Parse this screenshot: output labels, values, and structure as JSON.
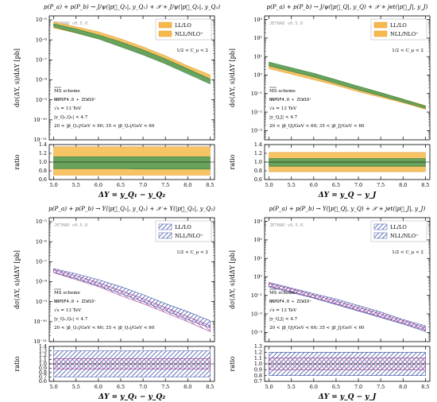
{
  "colors": {
    "ll_jpsi": "#f5b84a",
    "nll_jpsi": "#5a9f5a",
    "ll_ups": "#3a52a8",
    "nll_ups": "#a03a90",
    "frame": "#000000"
  },
  "chart_data": [
    {
      "type": "area",
      "panel": "top-left",
      "title": "p(P_a) + p(P_b) → J/ψ(|p⃗_Q₁|, y_Q₁) + 𝒳 + J/ψ(|p⃗_Q₂|, y_Q₂)",
      "watermark": "JETHAD v0.5.0",
      "ylabel": "dσ(ΔY, s)/dΔY [pb]",
      "xlabel": "ΔY = y_Q₁ − y_Q₂",
      "ratio_label": "ratio",
      "log_y": true,
      "ylim_exp": [
        -11,
        -4.8
      ],
      "y_ticks": [
        "10⁻⁵",
        "10⁻⁶",
        "10⁻⁷",
        "10⁻⁸",
        "10⁻⁹",
        "10⁻¹⁰",
        "10⁻¹¹"
      ],
      "y_tick_values": [
        -5,
        -6,
        -7,
        -8,
        -9,
        -10,
        -11
      ],
      "xlim": [
        4.9,
        8.6
      ],
      "x_ticks": [
        "5.0",
        "5.5",
        "6.0",
        "6.5",
        "7.0",
        "7.5",
        "8.0",
        "8.5"
      ],
      "x_tick_values": [
        5.0,
        5.5,
        6.0,
        6.5,
        7.0,
        7.5,
        8.0,
        8.5
      ],
      "ratio_ylim": [
        0.6,
        1.4
      ],
      "ratio_ticks": [
        "1.4",
        "1.2",
        "1.0",
        "0.8",
        "0.6"
      ],
      "ratio_tick_values": [
        1.4,
        1.2,
        1.0,
        0.8,
        0.6
      ],
      "legend": [
        {
          "label": "LL/LO",
          "style": "fill-ll"
        },
        {
          "label": "NLL/NLO⁺",
          "style": "fill-nll"
        }
      ],
      "annotation_cp": "1/2 < C_μ < 2",
      "annotations": [
        "MS scheme",
        "NNPDF4.0 + ZCW19⁺",
        "√s = 13 TeV",
        "|y_Q₁,Q₂| < 4.7",
        "20 < |p⃗_Q₁|/GeV < 60; 35 < |p⃗_Q₂|/GeV < 60"
      ],
      "x": [
        5.0,
        5.5,
        6.0,
        6.5,
        7.0,
        7.5,
        8.0,
        8.5
      ],
      "series": [
        {
          "name": "LL/LO",
          "style": "ll",
          "low": [
            -5.4,
            -5.65,
            -5.95,
            -6.3,
            -6.7,
            -7.15,
            -7.6,
            -8.05
          ],
          "high": [
            -5.1,
            -5.35,
            -5.6,
            -5.95,
            -6.35,
            -6.8,
            -7.3,
            -7.75
          ],
          "ratio_low": [
            0.7,
            0.7,
            0.7,
            0.7,
            0.7,
            0.7,
            0.7,
            0.7
          ],
          "ratio_high": [
            1.35,
            1.35,
            1.35,
            1.35,
            1.35,
            1.35,
            1.35,
            1.35
          ]
        },
        {
          "name": "NLL/NLO⁺",
          "style": "nll",
          "low": [
            -5.35,
            -5.65,
            -5.95,
            -6.35,
            -6.75,
            -7.2,
            -7.7,
            -8.2
          ],
          "high": [
            -5.2,
            -5.45,
            -5.75,
            -6.1,
            -6.5,
            -6.95,
            -7.45,
            -7.95
          ],
          "ratio_low": [
            0.85,
            0.85,
            0.85,
            0.85,
            0.84,
            0.84,
            0.84,
            0.84
          ],
          "ratio_high": [
            1.12,
            1.12,
            1.12,
            1.12,
            1.12,
            1.12,
            1.12,
            1.12
          ]
        }
      ]
    },
    {
      "type": "area",
      "panel": "top-right",
      "title": "p(P_a) + p(P_b) → J/ψ(|p⃗_Q|, y_Q) + 𝒳 + jet(|p⃗_J|, y_J)",
      "watermark": "JETHAD v0.5.0",
      "ylabel": "dσ(ΔY, s)/dΔY [pb]",
      "xlabel": "ΔY = y_Q − y_J",
      "ratio_label": "ratio",
      "log_y": true,
      "ylim_exp": [
        -3.5,
        3.2
      ],
      "y_ticks": [
        "10³",
        "10²",
        "10¹",
        "10⁰",
        "10⁻¹",
        "10⁻²",
        "10⁻³"
      ],
      "y_tick_values": [
        3,
        2,
        1,
        0,
        -1,
        -2,
        -3
      ],
      "xlim": [
        4.9,
        8.6
      ],
      "x_ticks": [
        "5.0",
        "5.5",
        "6.0",
        "6.5",
        "7.0",
        "7.5",
        "8.0",
        "8.5"
      ],
      "x_tick_values": [
        5.0,
        5.5,
        6.0,
        6.5,
        7.0,
        7.5,
        8.0,
        8.5
      ],
      "ratio_ylim": [
        0.6,
        1.4
      ],
      "ratio_ticks": [
        "1.4",
        "1.2",
        "1.0",
        "0.8",
        "0.6"
      ],
      "ratio_tick_values": [
        1.4,
        1.2,
        1.0,
        0.8,
        0.6
      ],
      "legend": [
        {
          "label": "LL/LO",
          "style": "fill-ll"
        },
        {
          "label": "NLL/NLO⁺",
          "style": "fill-nll"
        }
      ],
      "annotation_cp": "1/2 < C_μ < 2",
      "annotations": [
        "MS scheme",
        "NNPDF4.0 + ZCW19⁺",
        "√s = 13 TeV",
        "|y_Q,J| < 4.7",
        "20 < |p⃗_Q|/GeV < 60; 35 < |p⃗_J|/GeV < 60"
      ],
      "x": [
        5.0,
        5.5,
        6.0,
        6.5,
        7.0,
        7.5,
        8.0,
        8.5
      ],
      "series": [
        {
          "name": "LL/LO",
          "style": "ll",
          "low": [
            0.35,
            0.05,
            -0.25,
            -0.55,
            -0.9,
            -1.2,
            -1.5,
            -1.85
          ],
          "high": [
            0.62,
            0.32,
            0.02,
            -0.3,
            -0.62,
            -0.95,
            -1.3,
            -1.65
          ],
          "ratio_low": [
            0.78,
            0.78,
            0.78,
            0.78,
            0.78,
            0.78,
            0.78,
            0.78
          ],
          "ratio_high": [
            1.22,
            1.22,
            1.22,
            1.22,
            1.22,
            1.22,
            1.22,
            1.22
          ]
        },
        {
          "name": "NLL/NLO⁺",
          "style": "nll",
          "low": [
            0.5,
            0.2,
            -0.1,
            -0.45,
            -0.8,
            -1.12,
            -1.45,
            -1.8
          ],
          "high": [
            0.7,
            0.4,
            0.1,
            -0.25,
            -0.6,
            -0.95,
            -1.3,
            -1.68
          ],
          "ratio_low": [
            0.9,
            0.9,
            0.9,
            0.9,
            0.9,
            0.9,
            0.9,
            0.9
          ],
          "ratio_high": [
            1.08,
            1.08,
            1.08,
            1.08,
            1.08,
            1.08,
            1.08,
            1.08
          ]
        }
      ]
    },
    {
      "type": "area",
      "panel": "bottom-left",
      "title": "p(P_a) + p(P_b) → Υ(|p⃗_Q₁|, y_Q₁) + 𝒳 + Υ(|p⃗_Q₂|, y_Q₂)",
      "watermark": "JETHAD v0.5.0",
      "ylabel": "dσ(ΔY, s)/dΔY [pb]",
      "xlabel": "ΔY = y_Q₁ − y_Q₂",
      "ratio_label": "ratio",
      "log_y": true,
      "ylim_exp": [
        -11,
        -4.8
      ],
      "y_ticks": [
        "10⁻⁵",
        "10⁻⁶",
        "10⁻⁷",
        "10⁻⁸",
        "10⁻⁹",
        "10⁻¹⁰",
        "10⁻¹¹"
      ],
      "y_tick_values": [
        -5,
        -6,
        -7,
        -8,
        -9,
        -10,
        -11
      ],
      "xlim": [
        4.9,
        8.6
      ],
      "x_ticks": [
        "5.0",
        "5.5",
        "6.0",
        "6.5",
        "7.0",
        "7.5",
        "8.0",
        "8.5"
      ],
      "x_tick_values": [
        5.0,
        5.5,
        6.0,
        6.5,
        7.0,
        7.5,
        8.0,
        8.5
      ],
      "ratio_ylim": [
        0.6,
        1.4
      ],
      "ratio_ticks": [
        "1.4",
        "1.3",
        "1.2",
        "1.1",
        "1.0",
        "0.9",
        "0.8",
        "0.7",
        "0.6"
      ],
      "ratio_tick_values": [
        1.4,
        1.3,
        1.2,
        1.1,
        1.0,
        0.9,
        0.8,
        0.7,
        0.6
      ],
      "legend": [
        {
          "label": "LL/LO",
          "style": "hatch-ll"
        },
        {
          "label": "NLL/NLO⁺",
          "style": "hatch-nll"
        }
      ],
      "annotation_cp": "1/2 < C_μ < 2",
      "annotations": [
        "MS scheme",
        "NNPDF4.0 + ZCW19⁺",
        "√s = 13 TeV",
        "|y_Q₁,Q₂| < 4.7",
        "20 < |p⃗_Q₁|/GeV < 60; 35 < |p⃗_Q₂|/GeV < 60"
      ],
      "x": [
        5.0,
        5.5,
        6.0,
        6.5,
        7.0,
        7.5,
        8.0,
        8.5
      ],
      "series": [
        {
          "name": "LL/LO",
          "style": "ll",
          "low": [
            -7.55,
            -7.85,
            -8.2,
            -8.6,
            -9.0,
            -9.45,
            -9.9,
            -10.3
          ],
          "high": [
            -7.35,
            -7.6,
            -7.9,
            -8.25,
            -8.65,
            -9.1,
            -9.5,
            -9.95
          ],
          "ratio_low": [
            0.7,
            0.7,
            0.7,
            0.7,
            0.7,
            0.7,
            0.7,
            0.7
          ],
          "ratio_high": [
            1.3,
            1.3,
            1.3,
            1.3,
            1.3,
            1.3,
            1.3,
            1.3
          ]
        },
        {
          "name": "NLL/NLO⁺",
          "style": "nll",
          "low": [
            -7.55,
            -7.9,
            -8.25,
            -8.7,
            -9.1,
            -9.55,
            -10.0,
            -10.5
          ],
          "high": [
            -7.4,
            -7.7,
            -8.05,
            -8.45,
            -8.85,
            -9.3,
            -9.75,
            -10.2
          ],
          "ratio_low": [
            0.88,
            0.88,
            0.88,
            0.88,
            0.88,
            0.88,
            0.88,
            0.88
          ],
          "ratio_high": [
            1.12,
            1.12,
            1.12,
            1.12,
            1.12,
            1.12,
            1.12,
            1.12
          ]
        }
      ]
    },
    {
      "type": "area",
      "panel": "bottom-right",
      "title": "p(P_a) + p(P_b) → Υ(|p⃗_Q|, y_Q) + 𝒳 + jet(|p⃗_J|, y_J)",
      "watermark": "JETHAD v0.5.0",
      "ylabel": "dσ(ΔY, s)/dΔY [pb]",
      "xlabel": "ΔY = y_Q − y_J",
      "ratio_label": "ratio",
      "log_y": true,
      "ylim_exp": [
        -3.5,
        3.2
      ],
      "y_ticks": [
        "10³",
        "10²",
        "10¹",
        "10⁰",
        "10⁻¹",
        "10⁻²",
        "10⁻³"
      ],
      "y_tick_values": [
        3,
        2,
        1,
        0,
        -1,
        -2,
        -3
      ],
      "xlim": [
        4.9,
        8.6
      ],
      "x_ticks": [
        "5.0",
        "5.5",
        "6.0",
        "6.5",
        "7.0",
        "7.5",
        "8.0",
        "8.5"
      ],
      "x_tick_values": [
        5.0,
        5.5,
        6.0,
        6.5,
        7.0,
        7.5,
        8.0,
        8.5
      ],
      "ratio_ylim": [
        0.7,
        1.3
      ],
      "ratio_ticks": [
        "1.3",
        "1.2",
        "1.1",
        "1.0",
        "0.9",
        "0.8",
        "0.7"
      ],
      "ratio_tick_values": [
        1.3,
        1.2,
        1.1,
        1.0,
        0.9,
        0.8,
        0.7
      ],
      "legend": [
        {
          "label": "LL/LO",
          "style": "hatch-ll"
        },
        {
          "label": "NLL/NLO⁺",
          "style": "hatch-nll"
        }
      ],
      "annotation_cp": "1/2 < C_μ < 2",
      "annotations": [
        "MS scheme",
        "NNPDF4.0 + ZCW19⁺",
        "√s = 13 TeV",
        "|y_Q,J| < 4.7",
        "20 < |p⃗_Q|/GeV < 60; 35 < |p⃗_J|/GeV < 60"
      ],
      "x": [
        5.0,
        5.5,
        6.0,
        6.5,
        7.0,
        7.5,
        8.0,
        8.5
      ],
      "series": [
        {
          "name": "LL/LO",
          "style": "ll",
          "low": [
            -0.55,
            -0.85,
            -1.15,
            -1.5,
            -1.85,
            -2.2,
            -2.55,
            -2.95
          ],
          "high": [
            -0.3,
            -0.6,
            -0.9,
            -1.2,
            -1.55,
            -1.9,
            -2.3,
            -2.65
          ],
          "ratio_low": [
            0.8,
            0.8,
            0.8,
            0.8,
            0.8,
            0.8,
            0.8,
            0.8
          ],
          "ratio_high": [
            1.2,
            1.2,
            1.2,
            1.2,
            1.2,
            1.2,
            1.2,
            1.2
          ]
        },
        {
          "name": "NLL/NLO⁺",
          "style": "nll",
          "low": [
            -0.5,
            -0.8,
            -1.12,
            -1.45,
            -1.8,
            -2.15,
            -2.5,
            -2.88
          ],
          "high": [
            -0.35,
            -0.65,
            -0.97,
            -1.3,
            -1.65,
            -2.0,
            -2.36,
            -2.75
          ],
          "ratio_low": [
            0.9,
            0.9,
            0.9,
            0.9,
            0.9,
            0.9,
            0.9,
            0.9
          ],
          "ratio_high": [
            1.1,
            1.1,
            1.1,
            1.1,
            1.1,
            1.1,
            1.1,
            1.1
          ]
        }
      ]
    }
  ]
}
